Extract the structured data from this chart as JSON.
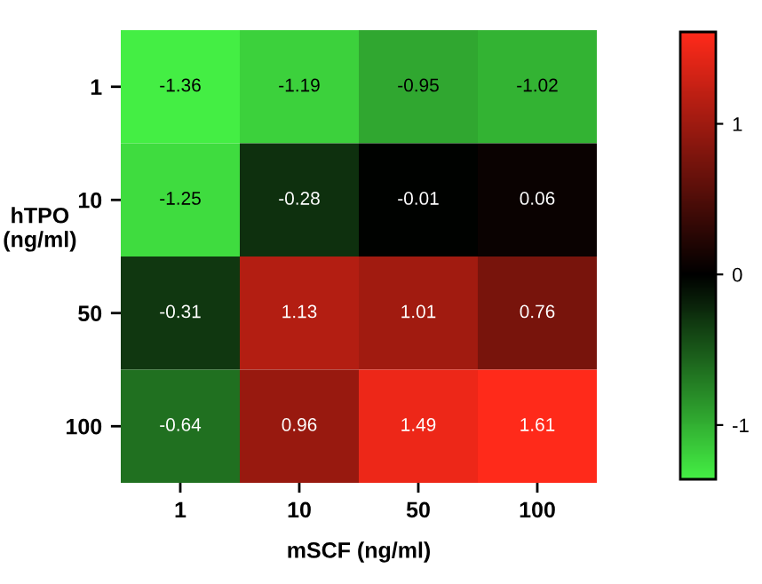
{
  "chart_data": {
    "type": "heatmap",
    "xlabel": "mSCF (ng/ml)",
    "ylabel": "hTPO\n(ng/ml)",
    "categories": [
      "1",
      "10",
      "50",
      "100"
    ],
    "y_categories": [
      "1",
      "10",
      "50",
      "100"
    ],
    "cells": [
      [
        -1.36,
        -1.19,
        -0.95,
        -1.02
      ],
      [
        -1.25,
        -0.28,
        -0.01,
        0.06
      ],
      [
        -0.31,
        1.13,
        1.01,
        0.76
      ],
      [
        -0.64,
        0.96,
        1.49,
        1.61
      ]
    ],
    "data_labels": true,
    "colors": [
      "#44ee44",
      "#000000",
      "#ff2a1a"
    ],
    "clim": [
      -1.36,
      1.61
    ],
    "cticks": [
      -1,
      0,
      1
    ]
  }
}
